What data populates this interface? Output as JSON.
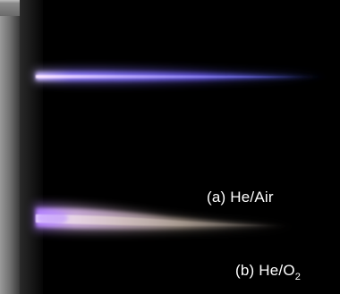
{
  "photo": {
    "plume_top": {
      "label": "(a) He/Air",
      "color": "#7a6cff"
    },
    "plume_bottom": {
      "label_prefix": "(b) He/O",
      "label_subscript": "2",
      "color": "#d9c8c0"
    },
    "background_color": "#000000",
    "electrode_color": "#1c1c1c",
    "edge_color": "#7a7a7a"
  }
}
